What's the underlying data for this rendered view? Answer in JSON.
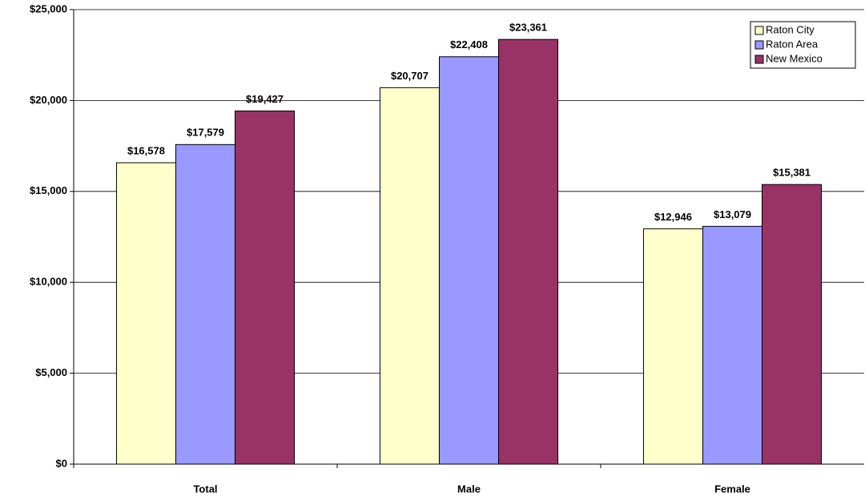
{
  "chart_data": {
    "type": "bar",
    "categories": [
      "Total",
      "Male",
      "Female"
    ],
    "series": [
      {
        "name": "Raton City",
        "color": "#ffffcc",
        "values": [
          16578,
          20707,
          12946
        ],
        "value_labels": [
          "$16,578",
          "$20,707",
          "$12,946"
        ]
      },
      {
        "name": "Raton Area",
        "color": "#9999ff",
        "values": [
          17579,
          22408,
          13079
        ],
        "value_labels": [
          "$17,579",
          "$22,408",
          "$13,079"
        ]
      },
      {
        "name": "New Mexico",
        "color": "#993366",
        "values": [
          19427,
          23361,
          15381
        ],
        "value_labels": [
          "$19,427",
          "$23,361",
          "$15,381"
        ]
      }
    ],
    "ylim": [
      0,
      25000
    ],
    "yticks": [
      {
        "value": 0,
        "label": "$0"
      },
      {
        "value": 5000,
        "label": "$5,000"
      },
      {
        "value": 10000,
        "label": "$10,000"
      },
      {
        "value": 15000,
        "label": "$15,000"
      },
      {
        "value": 20000,
        "label": "$20,000"
      },
      {
        "value": 25000,
        "label": "$25,000"
      }
    ],
    "grid": true,
    "legend": "upper right"
  }
}
